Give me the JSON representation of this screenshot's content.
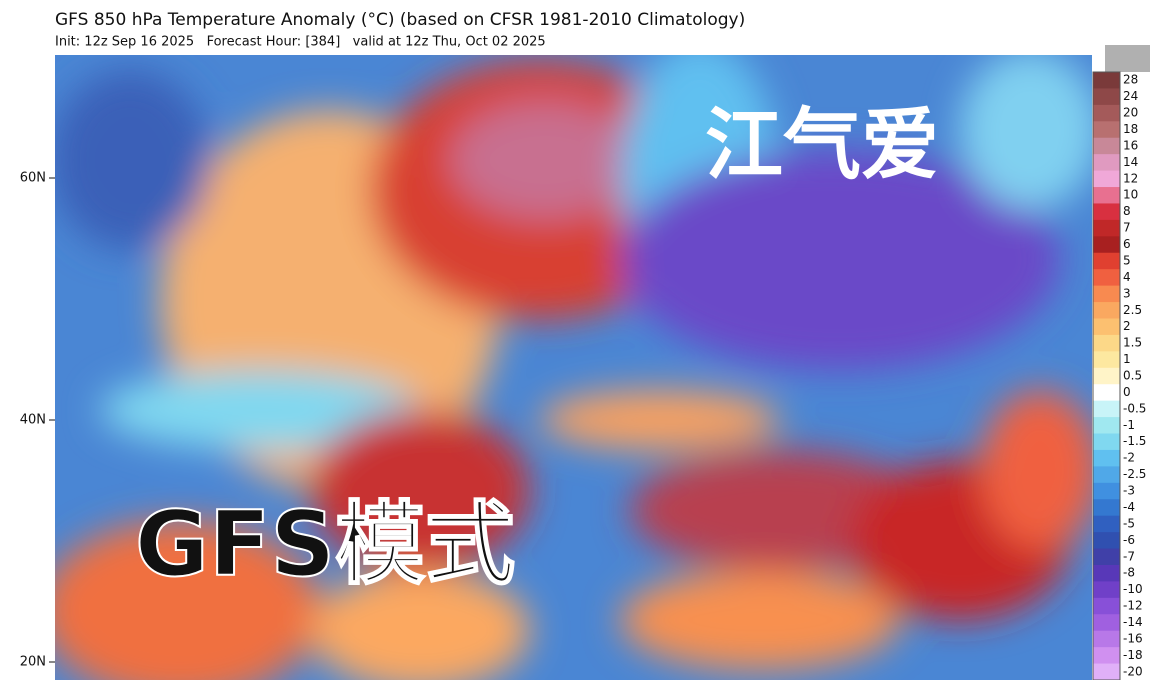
{
  "header": {
    "title": "GFS 850 hPa Temperature Anomaly (°C) (based on CFSR 1981-2010 Climatology)",
    "subtitle": "Init: 12z Sep 16 2025   Forecast Hour: [384]   valid at 12z Thu, Oct 02 2025"
  },
  "map": {
    "lat_labels": [
      "60N",
      "40N",
      "20N"
    ],
    "watermarks": [
      "江气爱",
      "GFS模式"
    ]
  },
  "colorbar": {
    "labels": [
      28,
      24,
      20,
      18,
      16,
      14,
      12,
      10,
      8,
      7,
      6,
      5,
      4,
      3,
      2.5,
      2,
      1.5,
      1,
      0.5,
      0,
      -0.5,
      -1,
      -1.5,
      -2,
      -2.5,
      -3,
      -4,
      -5,
      -6,
      -7,
      -8,
      -10,
      -12,
      -14,
      -16,
      -18,
      -20
    ],
    "colors": [
      "#7a3a3a",
      "#8e4848",
      "#a45a5a",
      "#b87070",
      "#c88898",
      "#e09ac0",
      "#f0a8d8",
      "#e87090",
      "#d83040",
      "#c02828",
      "#a82020",
      "#e04030",
      "#f06040",
      "#f88a50",
      "#faa860",
      "#fcc070",
      "#fcd888",
      "#fde8a0",
      "#fff4c8",
      "#ffffff",
      "#c8f4f8",
      "#a0e8f0",
      "#80d8f0",
      "#60c0f0",
      "#50a8e8",
      "#4090e0",
      "#3478d0",
      "#3060c0",
      "#3050b0",
      "#4040a8",
      "#5838b8",
      "#7040c8",
      "#8850d8",
      "#a060e0",
      "#b878e8",
      "#d090f0",
      "#e0b0f8"
    ]
  }
}
